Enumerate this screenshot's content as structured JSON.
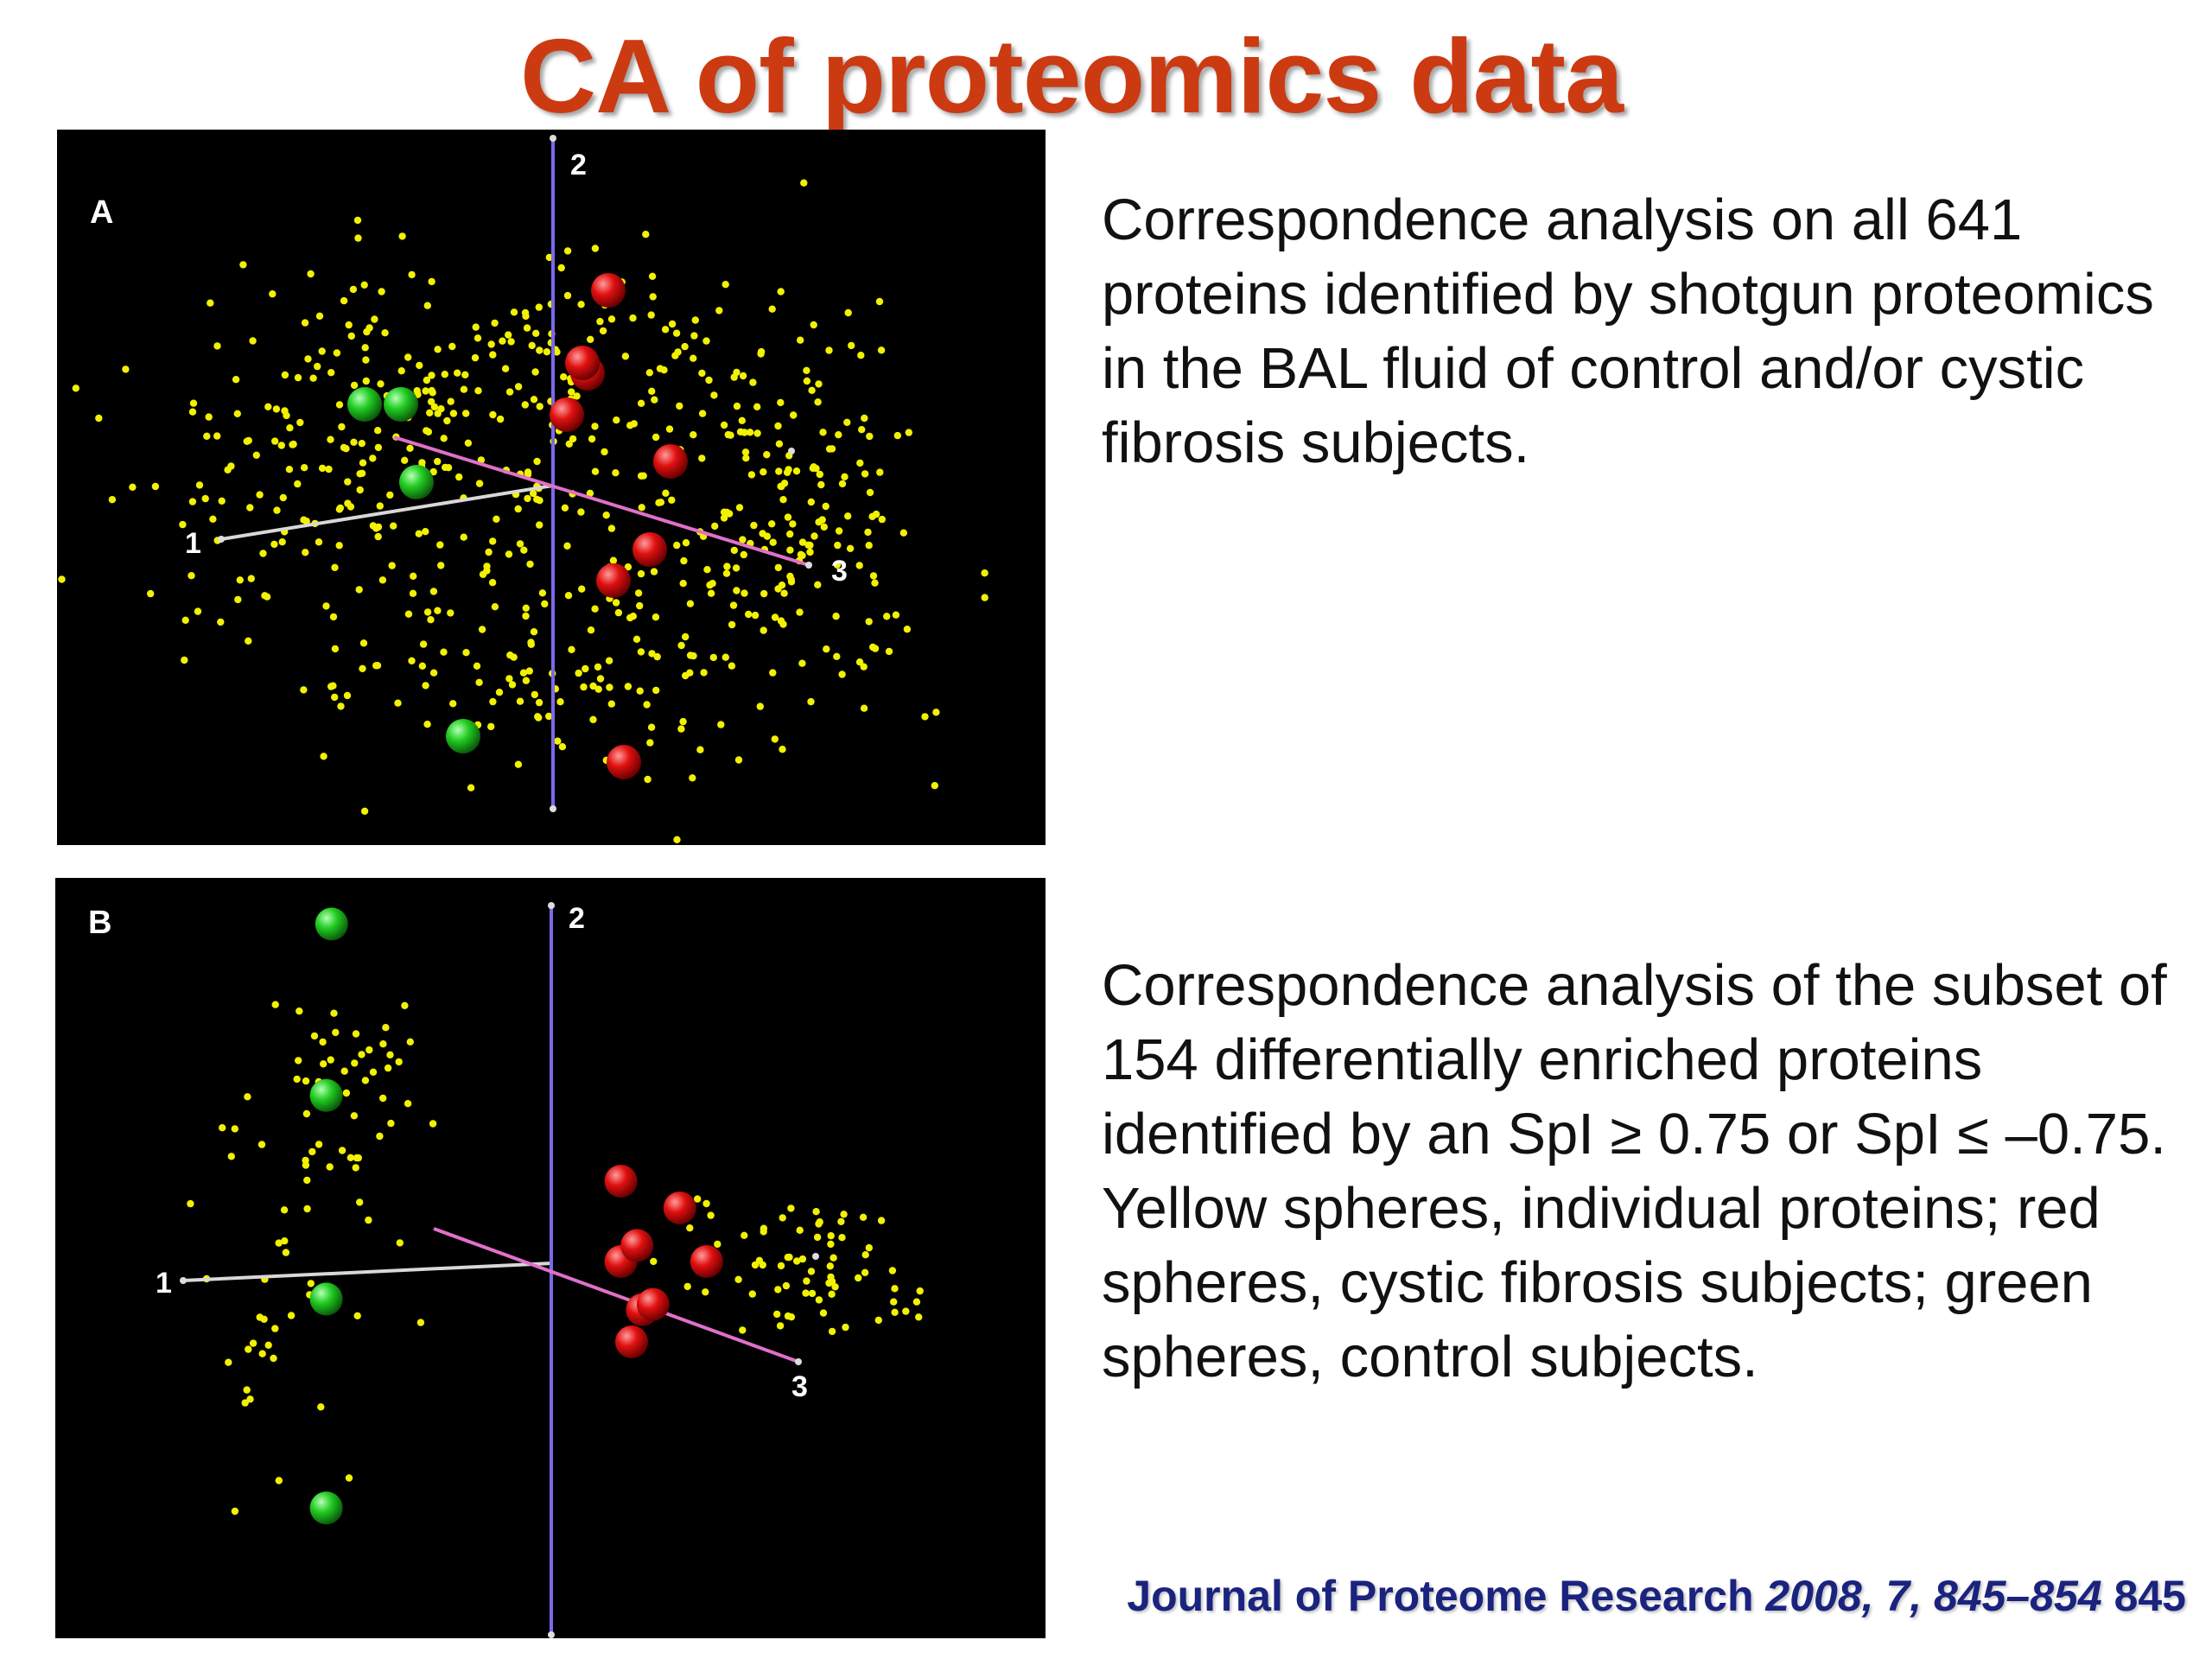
{
  "slide": {
    "title": "CA of proteomics data",
    "caption_a": "Correspondence analysis on all 641 proteins identified by shotgun proteomics in the BAL fluid of control and/or cystic fibrosis subjects.",
    "caption_b": "Correspondence analysis of the subset of 154 differentially enriched proteins identified by an SpI ≥ 0.75 or SpI ≤ –0.75. Yellow spheres, individual proteins; red spheres, cystic fibrosis subjects; green spheres, control subjects.",
    "citation": {
      "journal": "Journal of Proteome Research ",
      "ref_italic": "2008, 7, 845–854",
      "page": " 845"
    },
    "colors": {
      "title": "#cc3a12",
      "background_panel": "#000000",
      "proteins": "#f2f200",
      "cystic_fibrosis": "#e01010",
      "control": "#22cc22",
      "axis_1": "#d8d8d8",
      "axis_2": "#7b68ee",
      "axis_3": "#e070c8",
      "citation": "#1a237e"
    }
  },
  "chart_data": [
    {
      "type": "scatter",
      "panel_label": "A",
      "axis_labels": [
        "1",
        "2",
        "3"
      ],
      "series": [
        {
          "name": "Yellow spheres, individual proteins",
          "count": 641,
          "points": []
        },
        {
          "name": "red spheres, cystic fibrosis subjects",
          "points": [
            [
              0.14,
              -0.53
            ],
            [
              0.12,
              -0.18
            ],
            [
              0.19,
              -0.12
            ],
            [
              0.23,
              0.05
            ],
            [
              0.03,
              0.14
            ],
            [
              0.07,
              0.22
            ],
            [
              0.06,
              0.24
            ],
            [
              0.11,
              0.38
            ]
          ]
        },
        {
          "name": "green spheres, control subjects",
          "points": [
            [
              -0.17,
              -0.48
            ],
            [
              -0.26,
              0.01
            ],
            [
              -0.36,
              0.16
            ],
            [
              -0.29,
              0.16
            ]
          ]
        }
      ]
    },
    {
      "type": "scatter",
      "panel_label": "B",
      "axis_labels": [
        "1",
        "2",
        "3"
      ],
      "series": [
        {
          "name": "Yellow spheres, individual proteins",
          "count": 154,
          "points": []
        },
        {
          "name": "red spheres, cystic fibrosis subjects",
          "points": [
            [
              0.15,
              -0.15
            ],
            [
              0.17,
              -0.09
            ],
            [
              0.19,
              -0.08
            ],
            [
              0.29,
              0.0
            ],
            [
              0.13,
              0.0
            ],
            [
              0.16,
              0.03
            ],
            [
              0.24,
              0.1
            ],
            [
              0.13,
              0.15
            ]
          ]
        },
        {
          "name": "green spheres, control subjects",
          "points": [
            [
              -0.42,
              -0.46
            ],
            [
              -0.42,
              -0.07
            ],
            [
              -0.42,
              0.31
            ],
            [
              -0.41,
              0.63
            ]
          ]
        }
      ]
    }
  ]
}
